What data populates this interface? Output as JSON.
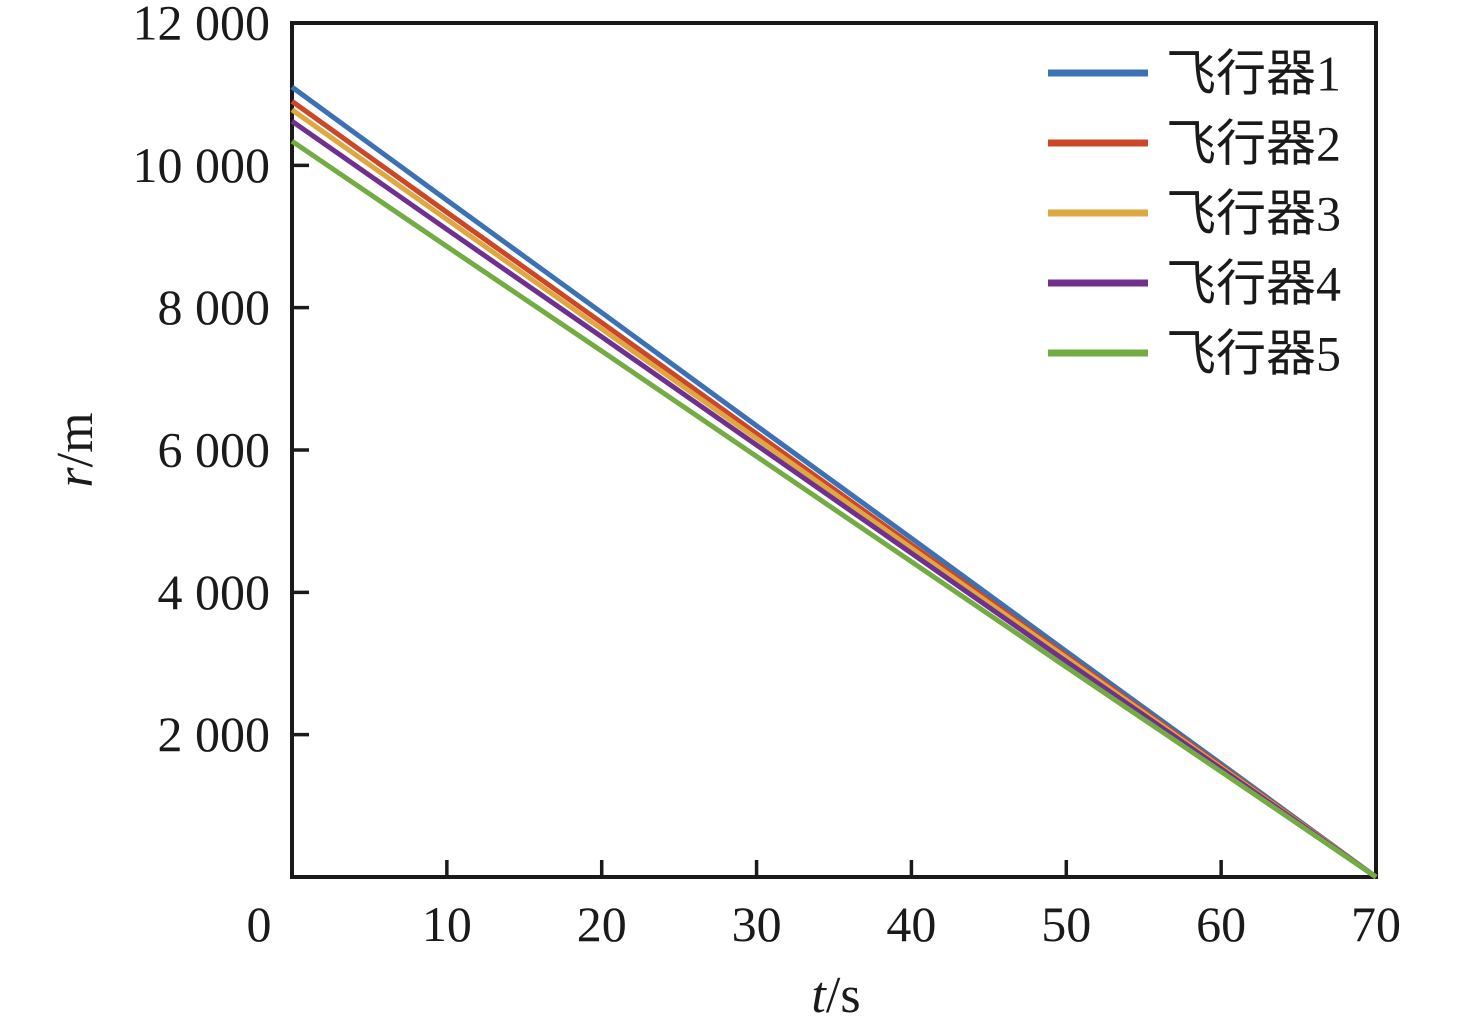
{
  "chart_data": {
    "type": "line",
    "title": "",
    "xlabel_var": "t",
    "xlabel_unit": "/s",
    "ylabel_var": "r",
    "ylabel_unit": "/m",
    "xlim": [
      0,
      70
    ],
    "ylim": [
      0,
      12000
    ],
    "grid": false,
    "legend_position": "top-right-inside",
    "axis_color": "#1a1a1a",
    "x_ticks": [
      0,
      10,
      20,
      30,
      40,
      50,
      60,
      70
    ],
    "x_tick_labels": [
      "0",
      "10",
      "20",
      "30",
      "40",
      "50",
      "60",
      "70"
    ],
    "y_ticks": [
      2000,
      4000,
      6000,
      8000,
      10000,
      12000
    ],
    "y_tick_labels": [
      "2 000",
      "4 000",
      "6 000",
      "8 000",
      "10 000",
      "12 000"
    ],
    "x": [
      0,
      10,
      20,
      30,
      40,
      50,
      60,
      70
    ],
    "series": [
      {
        "name": "飞行器1",
        "color": "#3C72B5",
        "values": [
          11100,
          9510,
          7930,
          6340,
          4760,
          3170,
          1590,
          0
        ]
      },
      {
        "name": "飞行器2",
        "color": "#CB4727",
        "values": [
          10900,
          9340,
          7790,
          6230,
          4670,
          3110,
          1560,
          0
        ]
      },
      {
        "name": "飞行器3",
        "color": "#DFA740",
        "values": [
          10780,
          9240,
          7700,
          6160,
          4620,
          3080,
          1540,
          0
        ]
      },
      {
        "name": "飞行器4",
        "color": "#6F3090",
        "values": [
          10620,
          9100,
          7590,
          6070,
          4550,
          3030,
          1520,
          0
        ]
      },
      {
        "name": "飞行器5",
        "color": "#73AC43",
        "values": [
          10340,
          8860,
          7390,
          5910,
          4430,
          2950,
          1480,
          0
        ]
      }
    ]
  }
}
